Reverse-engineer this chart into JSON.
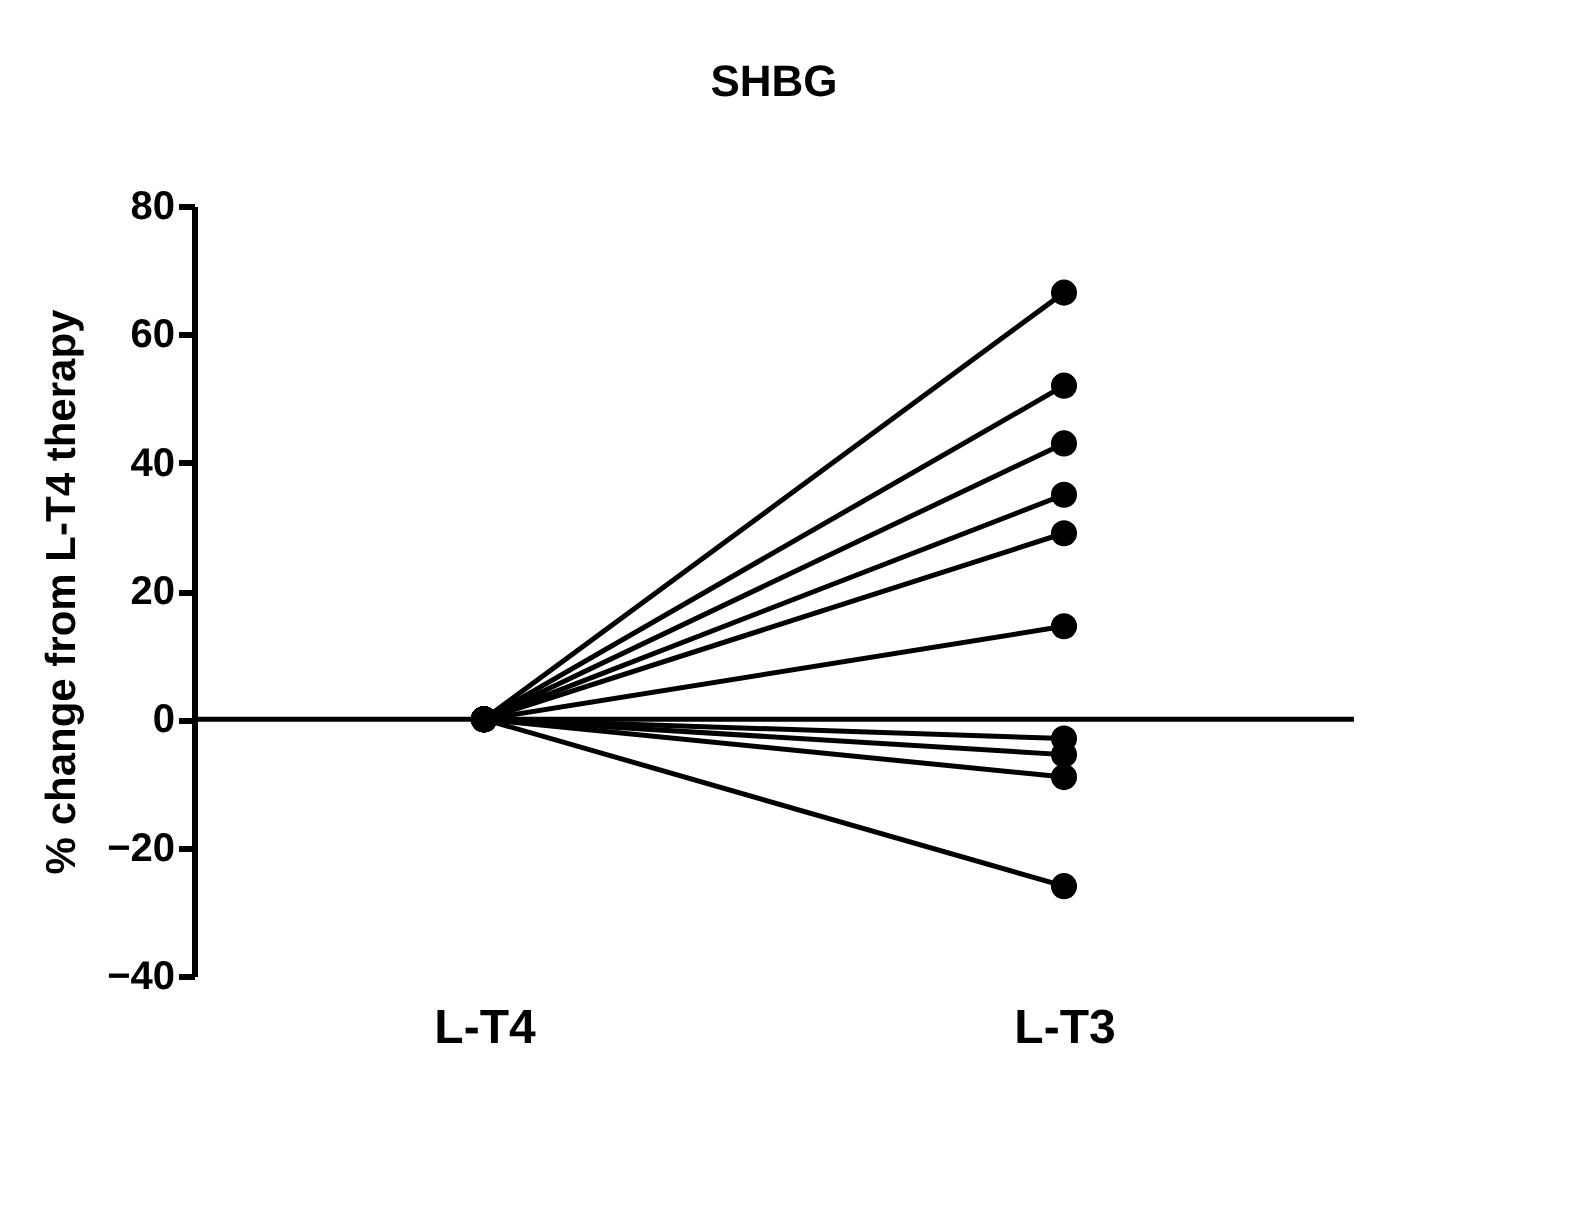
{
  "chart_data": {
    "type": "line",
    "title": "SHBG",
    "ylabel": "% change from L-T4 therapy",
    "categories": [
      "L-T4",
      "L-T3"
    ],
    "series": [
      {
        "color": "#000000",
        "values": [
          0,
          66.5
        ]
      },
      {
        "color": "#000000",
        "values": [
          0,
          52
        ]
      },
      {
        "color": "#000000",
        "values": [
          0,
          43
        ]
      },
      {
        "color": "#000000",
        "values": [
          0,
          35
        ]
      },
      {
        "color": "#000000",
        "values": [
          0,
          29
        ]
      },
      {
        "color": "#000000",
        "values": [
          0,
          14.5
        ]
      },
      {
        "color": "#000000",
        "values": [
          0,
          -3
        ]
      },
      {
        "color": "#000000",
        "values": [
          0,
          -5.5
        ]
      },
      {
        "color": "#000000",
        "values": [
          0,
          -9
        ]
      },
      {
        "color": "#000000",
        "values": [
          0,
          -26
        ]
      }
    ],
    "ylim": [
      -40,
      80
    ],
    "yticks": [
      -40,
      -20,
      0,
      20,
      40,
      60,
      80
    ],
    "ref_lines": [
      {
        "axis": "y",
        "value": 0,
        "color": "#000000"
      }
    ],
    "marker": "circle",
    "line_style": "solid",
    "grid": false,
    "legend": false
  }
}
